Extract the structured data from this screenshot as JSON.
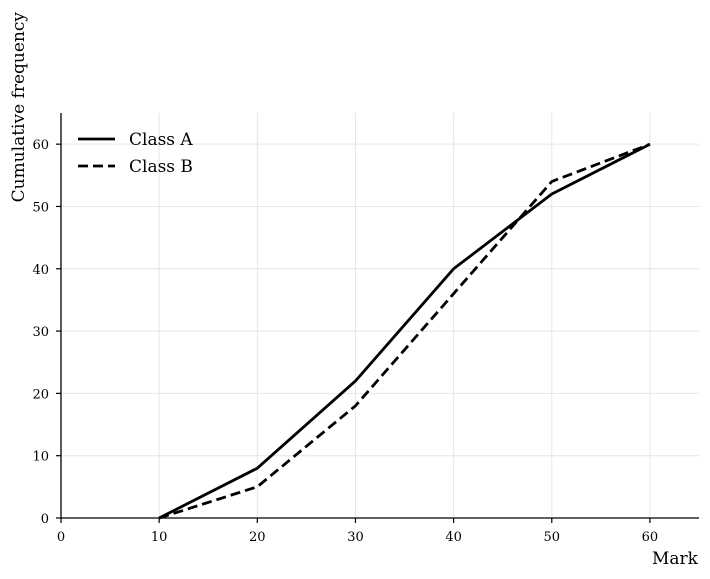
{
  "chart_data": {
    "type": "line",
    "title": "",
    "xlabel": "Mark",
    "ylabel": "Cumulative frequency",
    "xlim": [
      0,
      65
    ],
    "ylim": [
      0,
      65
    ],
    "xticks": [
      0,
      10,
      20,
      30,
      40,
      50,
      60
    ],
    "yticks": [
      0,
      10,
      20,
      30,
      40,
      50,
      60
    ],
    "grid": true,
    "legend_position": "top-left",
    "x": [
      10,
      20,
      30,
      40,
      50,
      60
    ],
    "series": [
      {
        "name": "Class A",
        "values": [
          0,
          8,
          22,
          40,
          52,
          60
        ],
        "style": "solid",
        "color": "#000000"
      },
      {
        "name": "Class B",
        "values": [
          0,
          5,
          18,
          36,
          54,
          60
        ],
        "style": "dashed",
        "color": "#000000"
      }
    ],
    "colors": {
      "grid": "#e6e6e6",
      "axis": "#000000",
      "background": "#ffffff"
    }
  }
}
